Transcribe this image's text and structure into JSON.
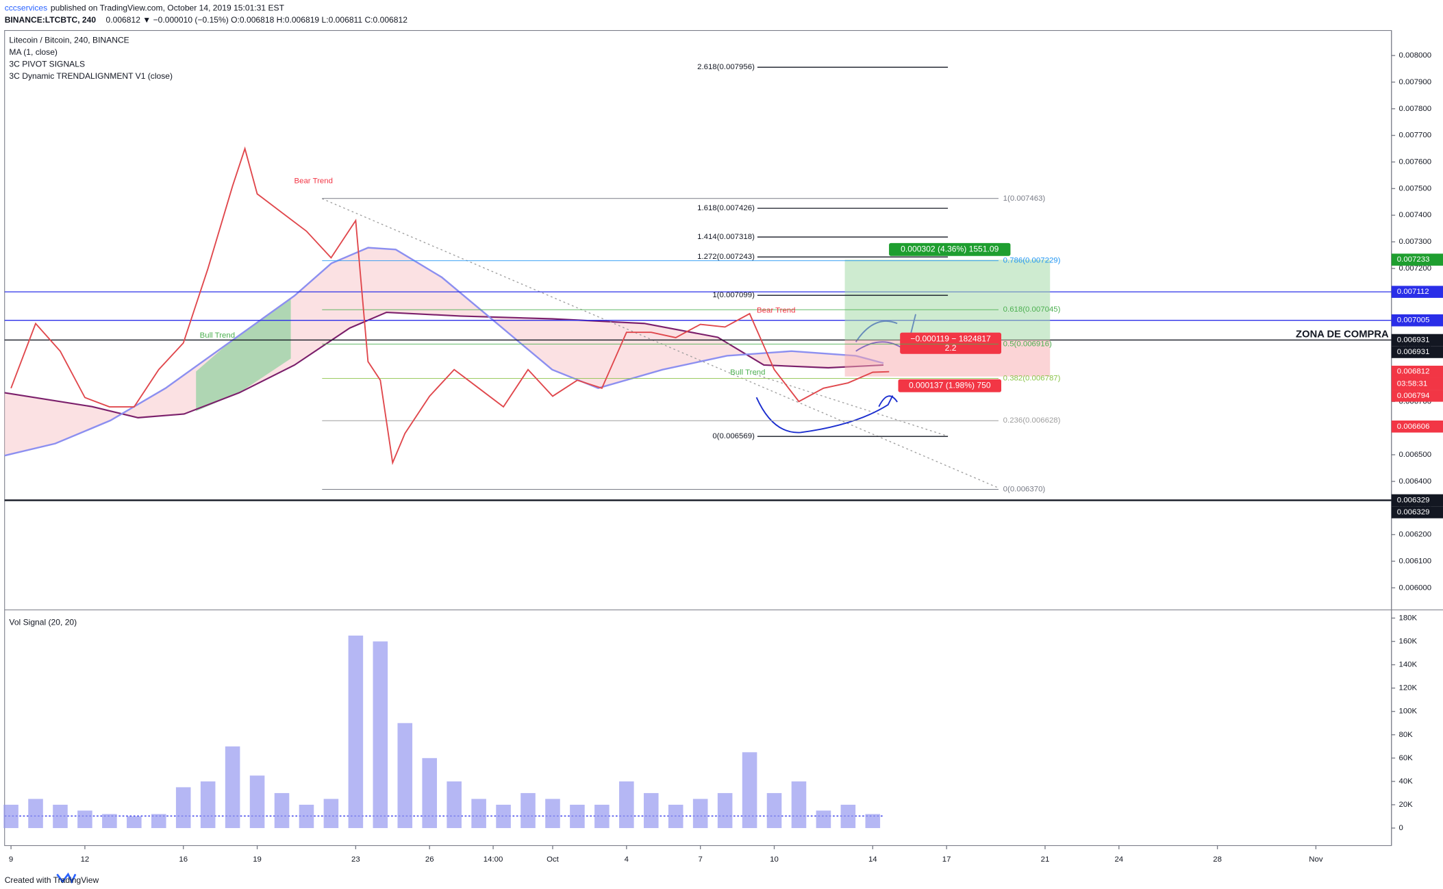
{
  "header": {
    "author": "cccservices",
    "published": "published on TradingView.com, October 14, 2019 15:01:31 EST",
    "ticker": "BINANCE:LTCBTC, 240",
    "quote": "0.006812 ▼ −0.000010 (−0.15%) O:0.006818 H:0.006819 L:0.006811 C:0.006812",
    "footer": "Created with TradingView"
  },
  "chart_data": [
    {
      "type": "line",
      "title": "Litecoin / Bitcoin, 240, BINANCE",
      "indicators": [
        "MA (1, close)",
        "3C PIVOT SIGNALS",
        "3C Dynamic TRENDALIGNMENT V1 (close)"
      ],
      "color": "#e0474c",
      "x": [
        "2019-09-09",
        "2019-09-10",
        "2019-09-11",
        "2019-09-12",
        "2019-09-13",
        "2019-09-14",
        "2019-09-15",
        "2019-09-16",
        "2019-09-17",
        "2019-09-18",
        "2019-09-18T12:00",
        "2019-09-19",
        "2019-09-20",
        "2019-09-21",
        "2019-09-22",
        "2019-09-23",
        "2019-09-23T12:00",
        "2019-09-24",
        "2019-09-24T12:00",
        "2019-09-25",
        "2019-09-26",
        "2019-09-27",
        "2019-09-28",
        "2019-09-29",
        "2019-09-30",
        "2019-10-01",
        "2019-10-02",
        "2019-10-03",
        "2019-10-04",
        "2019-10-05",
        "2019-10-06",
        "2019-10-07",
        "2019-10-08",
        "2019-10-09",
        "2019-10-10",
        "2019-10-11",
        "2019-10-12",
        "2019-10-13",
        "2019-10-14",
        "2019-10-14T16:00"
      ],
      "values": [
        0.00675,
        0.006993,
        0.006889,
        0.006715,
        0.00668,
        0.00668,
        0.00682,
        0.00692,
        0.0072,
        0.00751,
        0.00765,
        0.00748,
        0.00741,
        0.00734,
        0.00724,
        0.00738,
        0.00685,
        0.00678,
        0.00647,
        0.00658,
        0.00672,
        0.00682,
        0.00675,
        0.00668,
        0.00682,
        0.00672,
        0.00678,
        0.00675,
        0.00696,
        0.00696,
        0.00694,
        0.00699,
        0.00698,
        0.00703,
        0.00682,
        0.0067,
        0.00675,
        0.00677,
        0.00681,
        0.006812
      ],
      "xlim": [
        "2019-09-08T17:45",
        "2019-11-04T01:40"
      ],
      "xticks": [
        {
          "value": "2019-09-09",
          "label": "9"
        },
        {
          "value": "2019-09-12",
          "label": "12"
        },
        {
          "value": "2019-09-16",
          "label": "16"
        },
        {
          "value": "2019-09-19",
          "label": "19"
        },
        {
          "value": "2019-09-23",
          "label": "23"
        },
        {
          "value": "2019-09-26",
          "label": "26"
        },
        {
          "value": "2019-09-28T14:00",
          "label": "14:00"
        },
        {
          "value": "2019-10-01",
          "label": "Oct"
        },
        {
          "value": "2019-10-04",
          "label": "4"
        },
        {
          "value": "2019-10-07",
          "label": "7"
        },
        {
          "value": "2019-10-10",
          "label": "10"
        },
        {
          "value": "2019-10-14",
          "label": "14"
        },
        {
          "value": "2019-10-17",
          "label": "17"
        },
        {
          "value": "2019-10-21",
          "label": "21"
        },
        {
          "value": "2019-10-24",
          "label": "24"
        },
        {
          "value": "2019-10-28",
          "label": "28"
        },
        {
          "value": "2019-11-01",
          "label": "Nov"
        }
      ],
      "ylim": [
        0.005917,
        0.008094
      ],
      "yticks": [
        {
          "value": 0.006,
          "label": "0.006000"
        },
        {
          "value": 0.0061,
          "label": "0.006100"
        },
        {
          "value": 0.0062,
          "label": "0.006200"
        },
        {
          "value": 0.0063,
          "label": "0.006300"
        },
        {
          "value": 0.0064,
          "label": "0.006400"
        },
        {
          "value": 0.0065,
          "label": "0.006500"
        },
        {
          "value": 0.0066,
          "label": "0.006600"
        },
        {
          "value": 0.0067,
          "label": "0.006700"
        },
        {
          "value": 0.0068,
          "label": "0.006800"
        },
        {
          "value": 0.0069,
          "label": "0.006900"
        },
        {
          "value": 0.007,
          "label": "0.007000"
        },
        {
          "value": 0.0071,
          "label": "0.007100"
        },
        {
          "value": 0.0072,
          "label": "0.007200"
        },
        {
          "value": 0.0073,
          "label": "0.007300"
        },
        {
          "value": 0.0074,
          "label": "0.007400"
        },
        {
          "value": 0.0075,
          "label": "0.007500"
        },
        {
          "value": 0.0076,
          "label": "0.007600"
        },
        {
          "value": 0.0077,
          "label": "0.007700"
        },
        {
          "value": 0.0078,
          "label": "0.007800"
        },
        {
          "value": 0.0079,
          "label": "0.007900"
        },
        {
          "value": 0.008,
          "label": "0.008000"
        }
      ],
      "fib_extension": [
        {
          "label": "2.618(0.007956)",
          "value": 0.007956
        },
        {
          "label": "1.618(0.007426)",
          "value": 0.007426
        },
        {
          "label": "1.414(0.007318)",
          "value": 0.007318
        },
        {
          "label": "1.272(0.007243)",
          "value": 0.007243
        },
        {
          "label": "1(0.007099)",
          "value": 0.007099
        },
        {
          "label": "0(0.006569)",
          "value": 0.006569
        }
      ],
      "fib_retracement": [
        {
          "label": "1(0.007463)",
          "value": 0.007463,
          "color": "#787b86"
        },
        {
          "label": "0.786(0.007229)",
          "value": 0.007229,
          "color": "#2196f3"
        },
        {
          "label": "0.618(0.007045)",
          "value": 0.007045,
          "color": "#4caf50"
        },
        {
          "label": "0.5(0.006916)",
          "value": 0.006916,
          "color": "#4caf50"
        },
        {
          "label": "0.382(0.006787)",
          "value": 0.006787,
          "color": "#8bc34a"
        },
        {
          "label": "0.236(0.006628)",
          "value": 0.006628,
          "color": "#9e9e9e"
        },
        {
          "label": "0(0.006370)",
          "value": 0.00637,
          "color": "#787b86"
        }
      ],
      "levels": [
        {
          "value": 0.007112,
          "color": "#2a2ee8"
        },
        {
          "value": 0.007005,
          "color": "#2a2ee8"
        },
        {
          "value": 0.006931,
          "color": "#131722"
        },
        {
          "value": 0.006329,
          "color": "#131722"
        }
      ],
      "zone_label": "ZONA DE COMPRA",
      "price_markers": [
        {
          "value": 0.007233,
          "color": "#1e9e2f"
        },
        {
          "value": 0.007112,
          "color": "#2a2ee8"
        },
        {
          "value": 0.007005,
          "color": "#2a2ee8"
        },
        {
          "value": 0.006931,
          "color": "#131722"
        },
        {
          "value": 0.006931,
          "color": "#131722"
        },
        {
          "value": 0.006812,
          "color": "#f23645"
        },
        {
          "value": 0.006794,
          "color": "#f23645"
        },
        {
          "value": 0.006606,
          "color": "#f23645"
        },
        {
          "value": 0.006329,
          "color": "#131722"
        },
        {
          "value": 0.006329,
          "color": "#131722"
        }
      ],
      "countdown": "03:58:31",
      "position": {
        "target": 0.007233,
        "entry": 0.006931,
        "stop": 0.006794,
        "target_label": "0.000302 (4.36%) 1551.09",
        "entry_label": "−0.000119 − 1824817",
        "ratio_label": "2.2",
        "stop_label": "0.000137 (1.98%) 750"
      },
      "annotations": [
        {
          "text": "Bear Trend",
          "x": "2019-09-20T12:00",
          "y": 0.007528,
          "color": "#f23645"
        },
        {
          "text": "Bull Trend",
          "x": "2019-09-16T16:00",
          "y": 0.006948,
          "color": "#4caf50"
        },
        {
          "text": "Bull Trend",
          "x": "2019-10-08T05:00",
          "y": 0.006809,
          "color": "#4caf50"
        },
        {
          "text": "Bear Trend",
          "x": "2019-10-09T07:00",
          "y": 0.007042,
          "color": "#f23645"
        }
      ]
    },
    {
      "type": "bar",
      "title": "Vol Signal (20, 20)",
      "color": "#9598f0",
      "x": [
        "2019-09-09",
        "2019-09-10",
        "2019-09-11",
        "2019-09-12",
        "2019-09-13",
        "2019-09-14",
        "2019-09-15",
        "2019-09-16",
        "2019-09-17",
        "2019-09-18",
        "2019-09-19",
        "2019-09-20",
        "2019-09-21",
        "2019-09-22",
        "2019-09-23",
        "2019-09-24",
        "2019-09-25",
        "2019-09-26",
        "2019-09-27",
        "2019-09-28",
        "2019-09-29",
        "2019-09-30",
        "2019-10-01",
        "2019-10-02",
        "2019-10-03",
        "2019-10-04",
        "2019-10-05",
        "2019-10-06",
        "2019-10-07",
        "2019-10-08",
        "2019-10-09",
        "2019-10-10",
        "2019-10-11",
        "2019-10-12",
        "2019-10-13",
        "2019-10-14"
      ],
      "values": [
        20000,
        25000,
        20000,
        15000,
        12000,
        10000,
        12000,
        35000,
        40000,
        70000,
        45000,
        30000,
        20000,
        25000,
        165000,
        160000,
        90000,
        60000,
        40000,
        25000,
        20000,
        30000,
        25000,
        20000,
        20000,
        40000,
        30000,
        20000,
        25000,
        30000,
        65000,
        30000,
        40000,
        15000,
        20000,
        12000
      ],
      "ylim": [
        -15000,
        187000
      ],
      "yticks": [
        0,
        {
          "value": 20000,
          "label": "20K"
        },
        {
          "value": 40000,
          "label": "40K"
        },
        {
          "value": 60000,
          "label": "60K"
        },
        {
          "value": 80000,
          "label": "80K"
        },
        {
          "value": 100000,
          "label": "100K"
        },
        {
          "value": 120000,
          "label": "120K"
        },
        {
          "value": 140000,
          "label": "140K"
        },
        {
          "value": 160000,
          "label": "160K"
        },
        {
          "value": 180000,
          "label": "180K"
        }
      ]
    }
  ]
}
